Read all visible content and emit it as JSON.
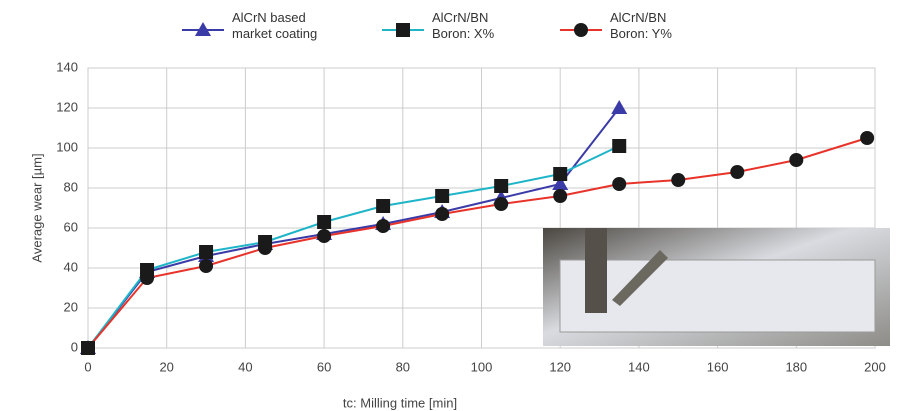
{
  "chart_data": {
    "type": "line",
    "xlabel": "tc: Milling time [min]",
    "ylabel": "Average wear [µm]",
    "xlim": [
      0,
      200
    ],
    "xticks": [
      0,
      20,
      40,
      60,
      80,
      100,
      120,
      140,
      160,
      180,
      200
    ],
    "ylim": [
      0,
      140
    ],
    "yticks": [
      0,
      20,
      40,
      60,
      80,
      100,
      120,
      140
    ],
    "grid": true,
    "series": [
      {
        "name": "AlCrN based market coating",
        "color": "#3b3ba8",
        "marker": "triangle",
        "marker_color": "#3b3ba8",
        "x": [
          0,
          15,
          30,
          45,
          60,
          75,
          90,
          105,
          120,
          135
        ],
        "values": [
          0,
          38,
          46,
          52,
          57,
          62,
          68,
          75,
          82,
          120
        ]
      },
      {
        "name": "AlCrN/BN Boron: X%",
        "color": "#1fb5c9",
        "marker": "square",
        "marker_color": "#1a1a1a",
        "x": [
          0,
          15,
          30,
          45,
          60,
          75,
          90,
          105,
          120,
          135
        ],
        "values": [
          0,
          39,
          48,
          53,
          63,
          71,
          76,
          81,
          87,
          101
        ]
      },
      {
        "name": "AlCrN/BN Boron: Y%",
        "color": "#e8332a",
        "marker": "circle",
        "marker_color": "#1a1a1a",
        "x": [
          0,
          15,
          30,
          45,
          60,
          75,
          90,
          105,
          120,
          135,
          150,
          165,
          180,
          198
        ],
        "values": [
          0,
          35,
          41,
          50,
          56,
          61,
          67,
          72,
          76,
          82,
          84,
          88,
          94,
          105
        ]
      }
    ]
  }
}
